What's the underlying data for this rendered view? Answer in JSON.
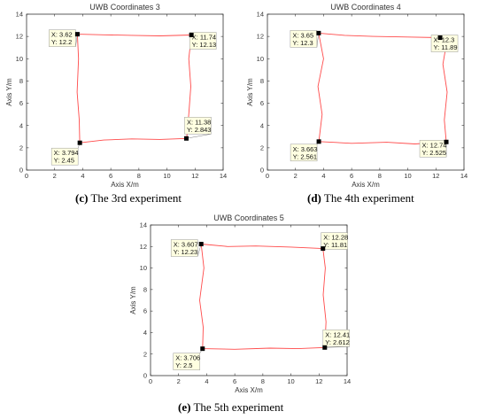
{
  "chart_data": [
    {
      "type": "line",
      "title": "UWB Coordinates 3",
      "xlabel": "Axis X/m",
      "ylabel": "Axis Y/m",
      "xlim": [
        0,
        14
      ],
      "ylim": [
        0,
        14
      ],
      "xticks": [
        "0",
        "2",
        "4",
        "6",
        "8",
        "10",
        "12",
        "14"
      ],
      "yticks": [
        "0",
        "2",
        "4",
        "6",
        "8",
        "10",
        "12",
        "14"
      ],
      "series": [
        {
          "color": "#ff4a4a",
          "x": [
            3.79,
            5.5,
            7.5,
            9.5,
            11.4,
            11.55,
            11.7,
            11.55,
            11.74,
            9.5,
            7.5,
            5.5,
            3.62,
            3.7,
            3.6,
            3.75,
            3.79
          ],
          "y": [
            2.45,
            2.7,
            2.8,
            2.75,
            2.84,
            5.0,
            7.5,
            10.0,
            12.13,
            12.05,
            12.1,
            12.15,
            12.2,
            10.0,
            7.0,
            4.5,
            2.45
          ]
        }
      ],
      "datatips": [
        {
          "x": 3.62,
          "y": 12.2,
          "x_label": "X: 3.62",
          "y_label": "Y: 12.2"
        },
        {
          "x": 11.74,
          "y": 12.13,
          "x_label": "X: 11.74",
          "y_label": "Y: 12.13"
        },
        {
          "x": 11.38,
          "y": 2.843,
          "x_label": "X: 11.38",
          "y_label": "Y: 2.843"
        },
        {
          "x": 3.794,
          "y": 2.45,
          "x_label": "X: 3.794",
          "y_label": "Y: 2.45"
        }
      ],
      "caption_letter": "(c)",
      "caption_text": " The 3rd experiment"
    },
    {
      "type": "line",
      "title": "UWB Coordinates 4",
      "xlabel": "Axis X/m",
      "ylabel": "Axis Y/m",
      "xlim": [
        0,
        14
      ],
      "ylim": [
        0,
        14
      ],
      "xticks": [
        "0",
        "2",
        "4",
        "6",
        "8",
        "10",
        "12",
        "14"
      ],
      "yticks": [
        "0",
        "2",
        "4",
        "6",
        "8",
        "10",
        "12",
        "14"
      ],
      "series": [
        {
          "color": "#ff4a4a",
          "x": [
            3.663,
            6.0,
            8.5,
            10.5,
            12.74,
            12.6,
            12.8,
            12.5,
            12.7,
            12.3,
            10.0,
            7.5,
            5.5,
            3.65,
            4.0,
            3.6,
            3.9,
            3.663
          ],
          "y": [
            2.561,
            2.4,
            2.5,
            2.35,
            2.525,
            4.5,
            7.0,
            9.5,
            11.0,
            11.89,
            11.95,
            12.0,
            12.1,
            12.3,
            10.0,
            7.5,
            5.0,
            2.561
          ]
        }
      ],
      "datatips": [
        {
          "x": 3.65,
          "y": 12.3,
          "x_label": "X: 3.65",
          "y_label": "Y: 12.3"
        },
        {
          "x": 12.3,
          "y": 11.89,
          "x_label": "X: 12.3",
          "y_label": "Y: 11.89"
        },
        {
          "x": 12.74,
          "y": 2.525,
          "x_label": "X: 12.74",
          "y_label": "Y: 2.525"
        },
        {
          "x": 3.663,
          "y": 2.561,
          "x_label": "X: 3.663",
          "y_label": "Y: 2.561"
        }
      ],
      "caption_letter": "(d)",
      "caption_text": " The 4th experiment"
    },
    {
      "type": "line",
      "title": "UWB Coordinates 5",
      "xlabel": "Axis X/m",
      "ylabel": "Axis Y/m",
      "xlim": [
        0,
        14
      ],
      "ylim": [
        0,
        14
      ],
      "xticks": [
        "0",
        "2",
        "4",
        "6",
        "8",
        "10",
        "12",
        "14"
      ],
      "yticks": [
        "0",
        "2",
        "4",
        "6",
        "8",
        "10",
        "12",
        "14"
      ],
      "series": [
        {
          "color": "#ff4a4a",
          "x": [
            3.706,
            6.0,
            8.5,
            10.5,
            12.41,
            12.5,
            12.3,
            12.45,
            12.28,
            10.0,
            7.5,
            5.5,
            3.607,
            3.8,
            3.5,
            3.75,
            3.706
          ],
          "y": [
            2.5,
            2.45,
            2.55,
            2.5,
            2.612,
            5.0,
            7.5,
            10.0,
            11.81,
            11.95,
            12.05,
            12.0,
            12.23,
            10.0,
            7.0,
            4.5,
            2.5
          ]
        }
      ],
      "datatips": [
        {
          "x": 3.607,
          "y": 12.23,
          "x_label": "X: 3.607",
          "y_label": "Y: 12.23"
        },
        {
          "x": 12.28,
          "y": 11.81,
          "x_label": "X: 12.28",
          "y_label": "Y: 11.81"
        },
        {
          "x": 12.41,
          "y": 2.612,
          "x_label": "X: 12.41",
          "y_label": "Y: 2.612"
        },
        {
          "x": 3.706,
          "y": 2.5,
          "x_label": "X: 3.706",
          "y_label": "Y: 2.5"
        }
      ],
      "caption_letter": "(e)",
      "caption_text": " The 5th experiment"
    }
  ]
}
